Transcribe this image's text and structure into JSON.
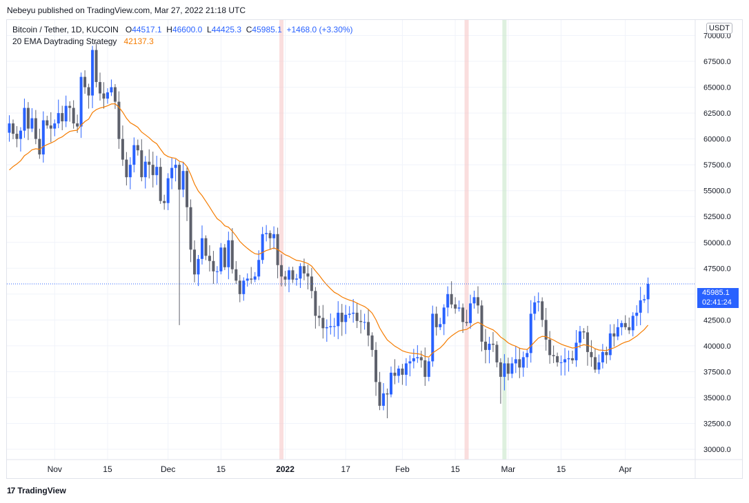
{
  "publisher": "Nebeyu published on TradingView.com, Mar 27, 2022 21:18 UTC",
  "brand": {
    "logo": "17",
    "name": "TradingView"
  },
  "legend": {
    "symbol": "Bitcoin / Tether, 1D, KUCOIN",
    "o_label": "O",
    "o": "44517.1",
    "h_label": "H",
    "h": "46600.0",
    "l_label": "L",
    "l": "44425.3",
    "c_label": "C",
    "c": "45985.1",
    "change": "+1468.0 (+3.30%)",
    "indicator": "20 EMA Daytrading Strategy",
    "indicator_value": "42137.3"
  },
  "currency": "USDT",
  "last_price": {
    "value": "45985.1",
    "countdown": "02:41:24"
  },
  "colors": {
    "up": "#2962ff",
    "down": "#5d606b",
    "ema": "#f57c00",
    "band_red": "#f7c8c8",
    "band_green": "#c8e6c9",
    "grid": "#f0f3fa",
    "price_line": "#2962ff"
  },
  "chart_data": {
    "type": "candlestick",
    "title": "",
    "ylim": [
      29000,
      71500
    ],
    "y_ticks": [
      "30000.0",
      "32500.0",
      "35000.0",
      "37500.0",
      "40000.0",
      "42500.0",
      "45000.0",
      "47500.0",
      "50000.0",
      "52500.0",
      "55000.0",
      "57500.0",
      "60000.0",
      "62500.0",
      "65000.0",
      "67500.0",
      "70000.0"
    ],
    "x_ticks": [
      {
        "label": "Nov",
        "date": "2021-11-01"
      },
      {
        "label": "15",
        "date": "2021-11-15"
      },
      {
        "label": "Dec",
        "date": "2021-12-01"
      },
      {
        "label": "15",
        "date": "2021-12-15"
      },
      {
        "label": "2022",
        "date": "2022-01-01"
      },
      {
        "label": "17",
        "date": "2022-01-17"
      },
      {
        "label": "Feb",
        "date": "2022-02-01"
      },
      {
        "label": "15",
        "date": "2022-02-15"
      },
      {
        "label": "Mar",
        "date": "2022-03-01"
      },
      {
        "label": "15",
        "date": "2022-03-15"
      },
      {
        "label": "Apr",
        "date": "2022-04-01"
      }
    ],
    "start_date": "2021-10-20",
    "closes": [
      61500,
      60500,
      60000,
      60800,
      63000,
      61000,
      62000,
      60000,
      58500,
      61800,
      61300,
      61000,
      61500,
      62500,
      61700,
      63200,
      63000,
      61500,
      61200,
      66000,
      65000,
      64200,
      68600,
      65500,
      64400,
      63900,
      64500,
      65000,
      63600,
      60000,
      58000,
      56300,
      57500,
      59400,
      58900,
      56300,
      57800,
      57500,
      56500,
      57300,
      54000,
      53800,
      56200,
      57200,
      57500,
      55100,
      56900,
      53400,
      49300,
      46900,
      48400,
      50400,
      48700,
      48200,
      47200,
      47200,
      49500,
      47600,
      50200,
      47400,
      46300,
      45000,
      46300,
      46500,
      46400,
      46700,
      48300,
      50800,
      50900,
      50400,
      50800,
      47800,
      46700,
      46400,
      47300,
      46400,
      46500,
      47700,
      47000,
      46700,
      45300,
      42900,
      42700,
      41700,
      41800,
      41900,
      41900,
      43200,
      42300,
      43000,
      43100,
      43200,
      42400,
      42300,
      42300,
      41000,
      39600,
      36500,
      34200,
      35400,
      35300,
      37400,
      37100,
      37800,
      37200,
      38300,
      38500,
      38800,
      38900,
      38600,
      37000,
      38500,
      43100,
      41800,
      42100,
      43700,
      45000,
      44000,
      43600,
      43700,
      42300,
      42200,
      44100,
      44700,
      43900,
      40400,
      39600,
      40200,
      40100,
      38400,
      37000,
      38300,
      37300,
      38300,
      38700,
      37900,
      38900,
      39300,
      43100,
      44200,
      44300,
      42500,
      40600,
      39100,
      39000,
      38400,
      38400,
      38700,
      38800,
      38600,
      40300,
      41400,
      41300,
      39400,
      38900,
      37700,
      38400,
      39400,
      39100,
      41200,
      40900,
      41800,
      42200,
      41800,
      41500,
      42900,
      43200,
      44400,
      44500,
      45985
    ]
  }
}
